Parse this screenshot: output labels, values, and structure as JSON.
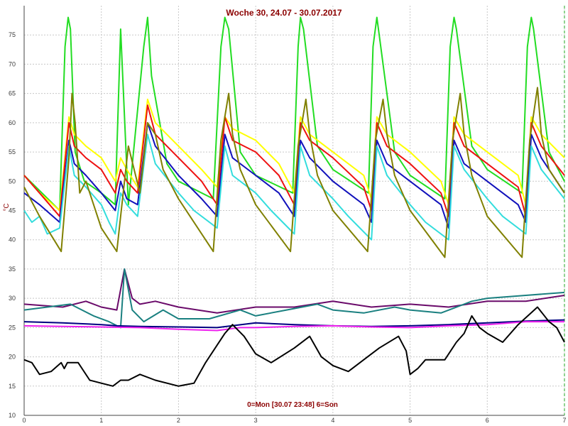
{
  "chart_data": {
    "type": "line",
    "title": "Woche 30, 24.07 - 30.07.2017",
    "footer": "0=Mon [30.07 23:48] 6=Son",
    "ylabel": "°C",
    "xlim": [
      0,
      7
    ],
    "ylim": [
      10,
      80
    ],
    "x_ticks": [
      "0",
      "1",
      "2",
      "3",
      "4",
      "5",
      "6",
      "7"
    ],
    "y_ticks": [
      "10",
      "15",
      "20",
      "25",
      "30",
      "35",
      "40",
      "45",
      "50",
      "55",
      "60",
      "65",
      "70",
      "75"
    ],
    "grid": true,
    "series": [
      {
        "color": "#22dd22",
        "x": [
          0,
          0.46,
          0.53,
          0.57,
          0.6,
          0.66,
          0.78,
          1.0,
          1.18,
          1.2,
          1.25,
          1.35,
          1.55,
          1.6,
          1.65,
          1.85,
          2.0,
          2.45,
          2.55,
          2.6,
          2.65,
          2.8,
          3.0,
          3.48,
          3.55,
          3.58,
          3.62,
          3.8,
          4.0,
          4.46,
          4.52,
          4.57,
          4.6,
          4.8,
          5.0,
          5.45,
          5.52,
          5.57,
          5.6,
          5.8,
          6.0,
          6.45,
          6.52,
          6.57,
          6.6,
          6.8,
          7.0
        ],
        "y": [
          51,
          45,
          73,
          78,
          76,
          55,
          50,
          48,
          46,
          55,
          76,
          46,
          73,
          78,
          68,
          53,
          50,
          47,
          73,
          78,
          76,
          55,
          51,
          48,
          73,
          78,
          76,
          56,
          52,
          48,
          73,
          78,
          75,
          55,
          51,
          47,
          73,
          78,
          76,
          56,
          52,
          48,
          73,
          78,
          76,
          55,
          50
        ]
      },
      {
        "color": "#ffff00",
        "x": [
          0,
          0.2,
          0.46,
          0.58,
          0.65,
          0.8,
          1.0,
          1.18,
          1.25,
          1.33,
          1.47,
          1.6,
          1.7,
          2.0,
          2.3,
          2.5,
          2.6,
          2.7,
          3.0,
          3.3,
          3.5,
          3.58,
          3.7,
          4.0,
          4.4,
          4.5,
          4.57,
          4.7,
          5.0,
          5.4,
          5.5,
          5.57,
          5.7,
          6.0,
          6.4,
          6.5,
          6.57,
          6.7,
          7.0
        ],
        "y": [
          51,
          48,
          45,
          61,
          58,
          56,
          54,
          50,
          54,
          52,
          49,
          64,
          60,
          56,
          52,
          49,
          61,
          59,
          57,
          53,
          48,
          61,
          58,
          55,
          51,
          47,
          61,
          58,
          55,
          50,
          46,
          61,
          58,
          55,
          51,
          46,
          61,
          58,
          54
        ]
      },
      {
        "color": "#ee1111",
        "x": [
          0,
          0.2,
          0.46,
          0.58,
          0.65,
          0.8,
          1.0,
          1.18,
          1.25,
          1.33,
          1.47,
          1.6,
          1.7,
          2.0,
          2.3,
          2.5,
          2.6,
          2.7,
          3.0,
          3.3,
          3.5,
          3.58,
          3.7,
          4.0,
          4.4,
          4.5,
          4.57,
          4.7,
          5.0,
          5.4,
          5.5,
          5.57,
          5.7,
          6.0,
          6.4,
          6.5,
          6.57,
          6.7,
          7.0
        ],
        "y": [
          51,
          48,
          44,
          60,
          56,
          54,
          52,
          48,
          52,
          50,
          48,
          63,
          58,
          54,
          50,
          46,
          61,
          57,
          55,
          51,
          46,
          60,
          57,
          54,
          49,
          45,
          60,
          56,
          53,
          48,
          44,
          60,
          56,
          53,
          49,
          44,
          60,
          56,
          51
        ]
      },
      {
        "color": "#1111bb",
        "x": [
          0,
          0.2,
          0.46,
          0.58,
          0.65,
          0.8,
          1.0,
          1.18,
          1.25,
          1.33,
          1.47,
          1.6,
          1.7,
          2.0,
          2.3,
          2.5,
          2.6,
          2.7,
          3.0,
          3.3,
          3.5,
          3.58,
          3.7,
          4.0,
          4.4,
          4.5,
          4.57,
          4.7,
          5.0,
          5.4,
          5.5,
          5.57,
          5.7,
          6.0,
          6.4,
          6.5,
          6.57,
          6.7,
          7.0
        ],
        "y": [
          48,
          46,
          43,
          57,
          53,
          51,
          48,
          45,
          50,
          47,
          46,
          60,
          56,
          51,
          47,
          44,
          58,
          54,
          51,
          48,
          44,
          57,
          54,
          50,
          46,
          43,
          57,
          53,
          50,
          46,
          42,
          57,
          53,
          50,
          46,
          43,
          58,
          54,
          48
        ]
      },
      {
        "color": "#33dddd",
        "x": [
          0,
          0.1,
          0.2,
          0.3,
          0.46,
          0.58,
          0.65,
          0.8,
          1.0,
          1.1,
          1.18,
          1.25,
          1.33,
          1.47,
          1.6,
          1.7,
          2.0,
          2.2,
          2.5,
          2.6,
          2.7,
          3.0,
          3.2,
          3.5,
          3.58,
          3.7,
          4.0,
          4.2,
          4.5,
          4.57,
          4.7,
          5.0,
          5.2,
          5.5,
          5.57,
          5.7,
          6.0,
          6.2,
          6.5,
          6.57,
          6.7,
          7.0
        ],
        "y": [
          45,
          43,
          44,
          41,
          42,
          56,
          51,
          49,
          46,
          43,
          41,
          48,
          46,
          44,
          58,
          53,
          48,
          45,
          42,
          56,
          51,
          48,
          45,
          41,
          56,
          51,
          47,
          44,
          40,
          56,
          51,
          46,
          43,
          40,
          56,
          52,
          47,
          44,
          41,
          56,
          52,
          47
        ]
      },
      {
        "color": "#808000",
        "x": [
          0,
          0.2,
          0.48,
          0.58,
          0.62,
          0.66,
          0.72,
          0.8,
          1.0,
          1.2,
          1.25,
          1.35,
          1.5,
          1.6,
          1.7,
          1.8,
          2.0,
          2.45,
          2.55,
          2.65,
          2.7,
          2.8,
          3.0,
          3.45,
          3.55,
          3.65,
          3.7,
          3.8,
          4.0,
          4.45,
          4.55,
          4.65,
          4.7,
          4.8,
          5.0,
          5.45,
          5.55,
          5.65,
          5.7,
          5.8,
          6.0,
          6.45,
          6.55,
          6.65,
          6.7,
          6.8,
          7.0
        ],
        "y": [
          49,
          44,
          38,
          54,
          65,
          60,
          48,
          50,
          42,
          38,
          44,
          56,
          48,
          60,
          58,
          52,
          47,
          38,
          57,
          65,
          58,
          52,
          46,
          38,
          56,
          64,
          58,
          51,
          45,
          38,
          57,
          64,
          58,
          51,
          45,
          37,
          57,
          65,
          58,
          51,
          44,
          37,
          57,
          66,
          58,
          52,
          48
        ]
      },
      {
        "color": "#6a0a6a",
        "x": [
          0,
          0.5,
          0.8,
          1.0,
          1.2,
          1.3,
          1.4,
          1.5,
          1.7,
          2.0,
          2.5,
          3.0,
          3.5,
          4.0,
          4.5,
          5.0,
          5.5,
          6.0,
          6.5,
          7.0
        ],
        "y": [
          29,
          28.5,
          29.5,
          28.5,
          28,
          35,
          30,
          29,
          29.5,
          28.5,
          27.5,
          28.5,
          28.5,
          29.5,
          28.5,
          29,
          28.5,
          29.5,
          29.5,
          30.5
        ]
      },
      {
        "color": "#1a8080",
        "x": [
          0,
          0.3,
          0.6,
          0.9,
          1.1,
          1.25,
          1.3,
          1.4,
          1.55,
          1.8,
          2.0,
          2.4,
          2.8,
          3.0,
          3.4,
          3.8,
          4.0,
          4.4,
          4.8,
          5.0,
          5.4,
          5.8,
          6.0,
          6.5,
          7.0
        ],
        "y": [
          28,
          28.5,
          29,
          27,
          26,
          25,
          35,
          28,
          26,
          28,
          26.5,
          26.5,
          28,
          27,
          28,
          29,
          28,
          27.5,
          28.5,
          28,
          27.5,
          29.5,
          30,
          30.5,
          31
        ]
      },
      {
        "color": "#000080",
        "x": [
          0,
          0.5,
          1.0,
          1.2,
          1.5,
          2.0,
          2.5,
          3.0,
          3.5,
          4.0,
          4.5,
          5.0,
          5.5,
          6.0,
          6.5,
          7.0
        ],
        "y": [
          26,
          25.8,
          25.5,
          25.3,
          25.2,
          25.1,
          25,
          25.8,
          25.5,
          25.3,
          25.2,
          25.3,
          25.5,
          25.8,
          26.1,
          26.3
        ]
      },
      {
        "color": "#ee22ee",
        "x": [
          0,
          0.5,
          1.0,
          1.5,
          2.0,
          2.5,
          2.8,
          3.0,
          3.5,
          4.0,
          4.5,
          5.0,
          5.5,
          6.0,
          6.5,
          7.0
        ],
        "y": [
          25.3,
          25.2,
          25.1,
          25,
          24.7,
          24.5,
          25,
          25,
          25.2,
          25.3,
          25.1,
          25,
          25.3,
          25.5,
          26,
          26
        ]
      },
      {
        "color": "#000000",
        "x": [
          0,
          0.1,
          0.2,
          0.35,
          0.48,
          0.52,
          0.56,
          0.7,
          0.85,
          1.0,
          1.15,
          1.25,
          1.35,
          1.5,
          1.7,
          2.0,
          2.2,
          2.35,
          2.5,
          2.6,
          2.7,
          2.85,
          3.0,
          3.2,
          3.5,
          3.7,
          3.85,
          4.0,
          4.2,
          4.4,
          4.6,
          4.85,
          4.95,
          5.0,
          5.1,
          5.2,
          5.45,
          5.6,
          5.7,
          5.8,
          5.9,
          6.0,
          6.2,
          6.4,
          6.65,
          6.8,
          6.9,
          7.0
        ],
        "y": [
          19.5,
          19,
          17,
          17.5,
          19,
          18,
          19,
          19,
          16,
          15.5,
          15,
          16,
          16,
          17,
          16,
          15,
          15.5,
          19,
          22,
          24,
          25.5,
          23.5,
          20.5,
          19,
          21.5,
          23.5,
          20,
          18.5,
          17.5,
          19.5,
          21.5,
          23.5,
          21,
          17,
          18,
          19.5,
          19.5,
          22.5,
          24,
          27,
          25,
          24,
          22.5,
          25.5,
          28.5,
          26,
          25,
          22.5
        ]
      }
    ]
  }
}
